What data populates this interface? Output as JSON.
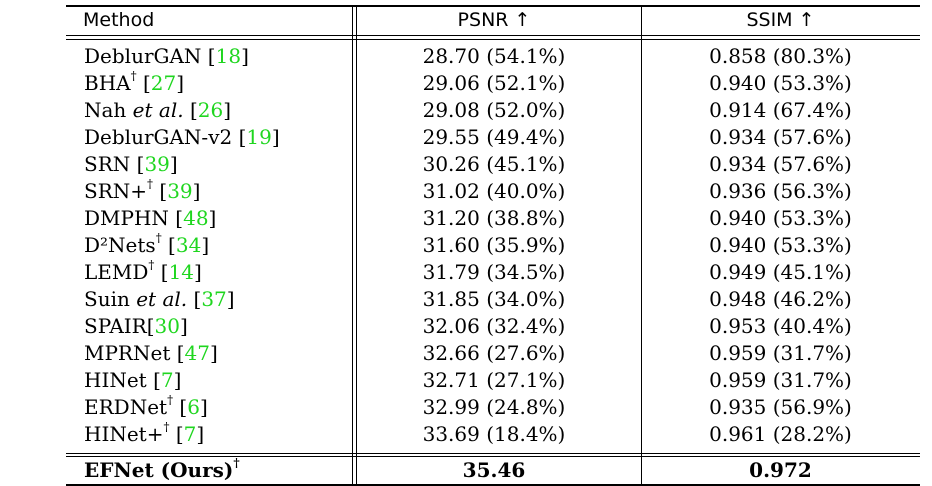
{
  "table": {
    "headers": [
      "Method",
      "PSNR ↑",
      "SSIM ↑"
    ],
    "rows": [
      {
        "method": "DeblurGAN",
        "etal": false,
        "dagger": false,
        "ref": "18",
        "space": true,
        "psnr": "28.70 (54.1%)",
        "ssim": "0.858 (80.3%)"
      },
      {
        "method": "BHA",
        "etal": false,
        "dagger": true,
        "ref": "27",
        "space": true,
        "psnr": "29.06 (52.1%)",
        "ssim": "0.940 (53.3%)"
      },
      {
        "method": "Nah",
        "etal": true,
        "dagger": false,
        "ref": "26",
        "space": true,
        "psnr": "29.08 (52.0%)",
        "ssim": "0.914 (67.4%)"
      },
      {
        "method": "DeblurGAN-v2",
        "etal": false,
        "dagger": false,
        "ref": "19",
        "space": true,
        "psnr": "29.55 (49.4%)",
        "ssim": "0.934 (57.6%)"
      },
      {
        "method": "SRN",
        "etal": false,
        "dagger": false,
        "ref": "39",
        "space": true,
        "psnr": "30.26 (45.1%)",
        "ssim": "0.934 (57.6%)"
      },
      {
        "method": "SRN+",
        "etal": false,
        "dagger": true,
        "ref": "39",
        "space": true,
        "psnr": "31.02 (40.0%)",
        "ssim": "0.936 (56.3%)"
      },
      {
        "method": "DMPHN",
        "etal": false,
        "dagger": false,
        "ref": "48",
        "space": true,
        "psnr": "31.20 (38.8%)",
        "ssim": "0.940 (53.3%)"
      },
      {
        "method": "D²Nets",
        "etal": false,
        "dagger": true,
        "ref": "34",
        "space": true,
        "psnr": "31.60 (35.9%)",
        "ssim": "0.940 (53.3%)"
      },
      {
        "method": "LEMD",
        "etal": false,
        "dagger": true,
        "ref": "14",
        "space": true,
        "psnr": "31.79 (34.5%)",
        "ssim": "0.949 (45.1%)"
      },
      {
        "method": "Suin",
        "etal": true,
        "dagger": false,
        "ref": "37",
        "space": true,
        "psnr": "31.85 (34.0%)",
        "ssim": "0.948 (46.2%)"
      },
      {
        "method": "SPAIR",
        "etal": false,
        "dagger": false,
        "ref": "30",
        "space": false,
        "psnr": "32.06 (32.4%)",
        "ssim": "0.953 (40.4%)"
      },
      {
        "method": "MPRNet",
        "etal": false,
        "dagger": false,
        "ref": "47",
        "space": true,
        "psnr": "32.66 (27.6%)",
        "ssim": "0.959 (31.7%)"
      },
      {
        "method": "HINet",
        "etal": false,
        "dagger": false,
        "ref": "7",
        "space": true,
        "psnr": "32.71 (27.1%)",
        "ssim": "0.959 (31.7%)"
      },
      {
        "method": "ERDNet",
        "etal": false,
        "dagger": true,
        "ref": "6",
        "space": true,
        "psnr": "32.99 (24.8%)",
        "ssim": "0.935 (56.9%)"
      },
      {
        "method": "HINet+",
        "etal": false,
        "dagger": true,
        "ref": "7",
        "space": true,
        "psnr": "33.69 (18.4%)",
        "ssim": "0.961 (28.2%)"
      }
    ],
    "final": {
      "method": "EFNet (Ours)",
      "dagger": true,
      "psnr": "35.46",
      "ssim": "0.972"
    },
    "etal_text": "et al.",
    "dagger_symbol": "†",
    "ref_color": "#1fd61f"
  }
}
